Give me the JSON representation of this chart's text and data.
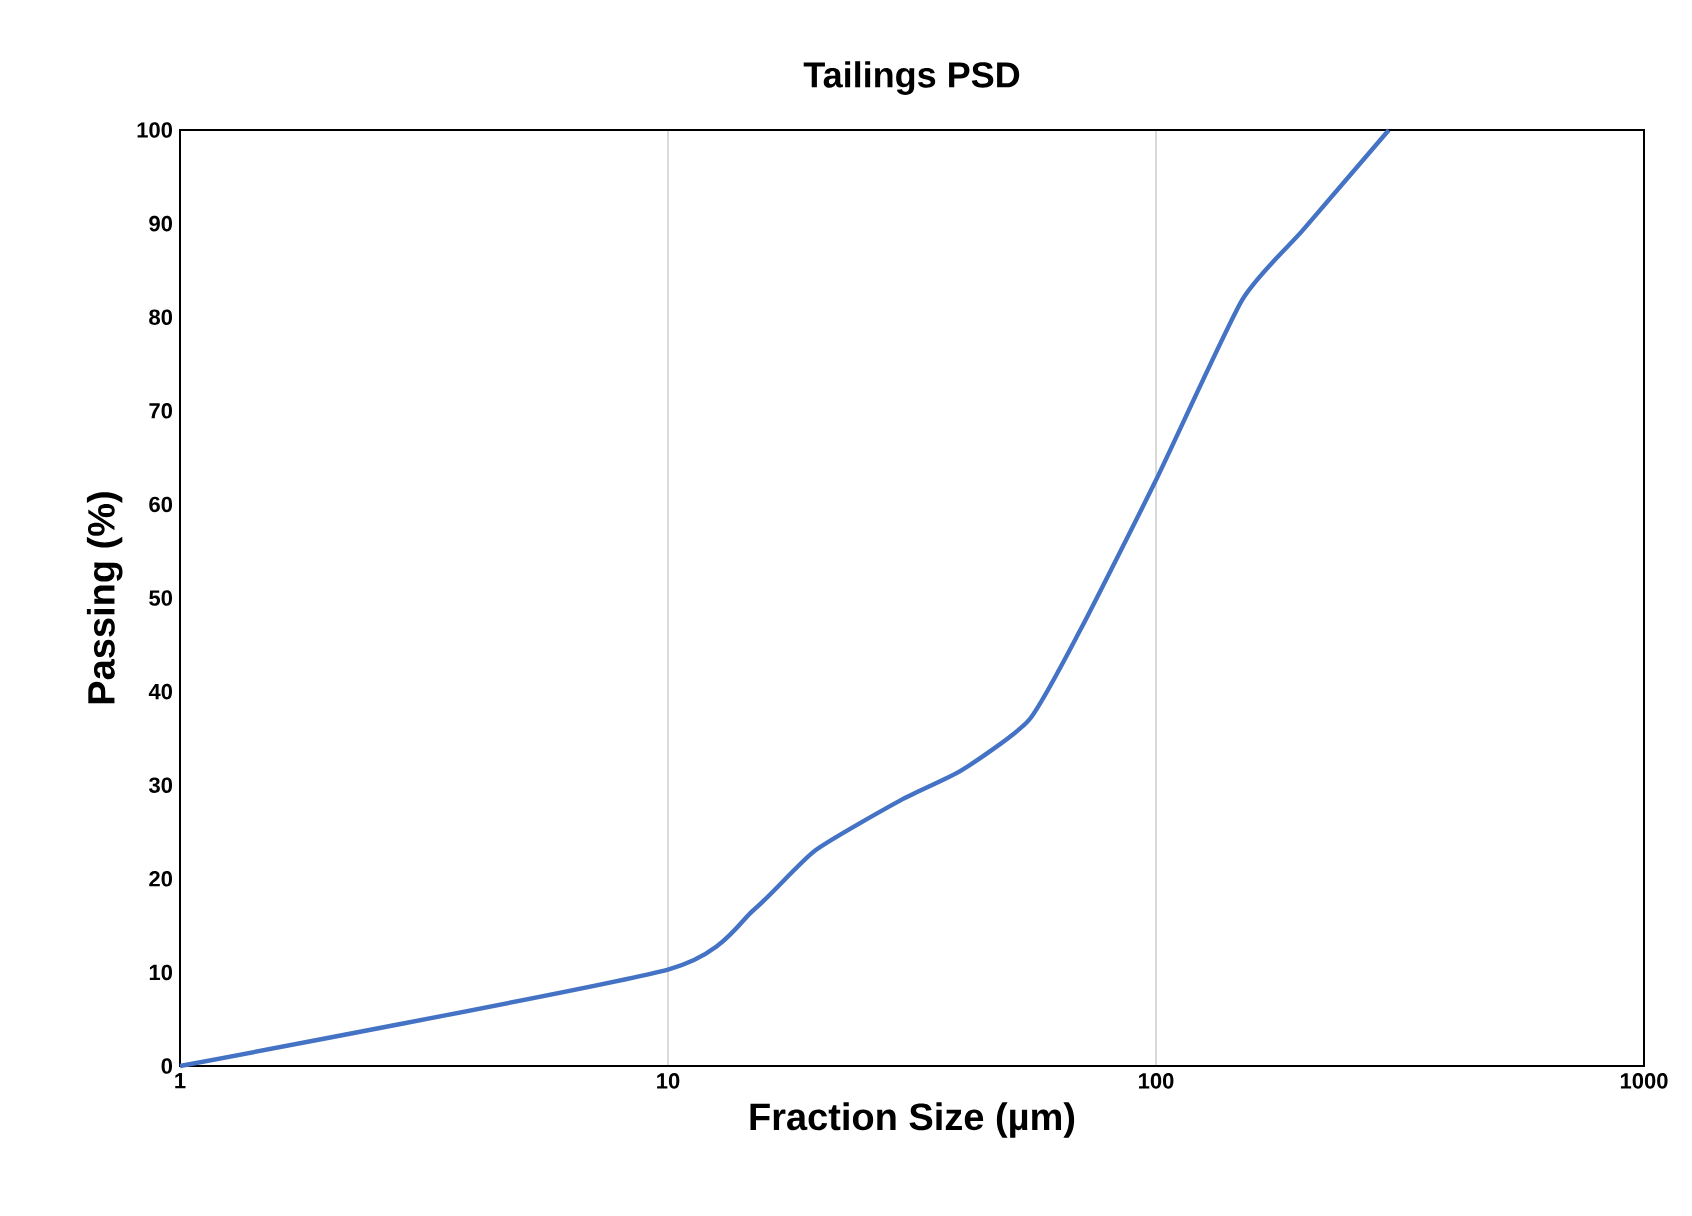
{
  "chart_data": {
    "type": "line",
    "title": "Tailings PSD",
    "xlabel": "Fraction Size (µm)",
    "ylabel": "Passing (%)",
    "log": "x",
    "grid": "x",
    "marker": "none",
    "line_style": "solid",
    "xlim": [
      1,
      1000
    ],
    "xticks": [
      1,
      10,
      100,
      1000
    ],
    "ylim": [
      0,
      100
    ],
    "yticks": [
      0,
      10,
      20,
      30,
      40,
      50,
      60,
      70,
      80,
      90,
      100
    ],
    "series": [
      {
        "color": "#4472c4",
        "x": [
          1,
          10,
          15,
          20,
          30,
          40,
          55,
          70,
          100,
          150,
          200,
          300
        ],
        "values": [
          0,
          10.3,
          16.7,
          23,
          28.4,
          31.6,
          37,
          46.6,
          62.6,
          81.8,
          89.3,
          100
        ]
      }
    ]
  }
}
